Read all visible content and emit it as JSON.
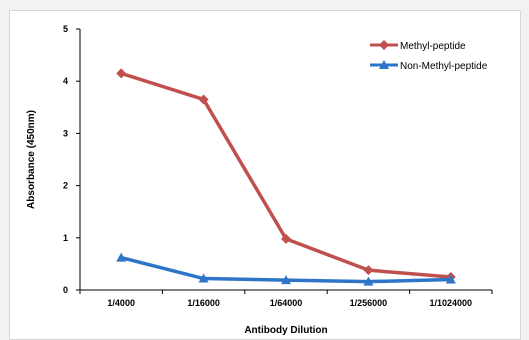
{
  "chart_data": {
    "type": "line",
    "categories": [
      "1/4000",
      "1/16000",
      "1/64000",
      "1/256000",
      "1/1024000"
    ],
    "series": [
      {
        "name": "Methyl-peptide",
        "values": [
          4.15,
          3.65,
          0.98,
          0.38,
          0.25
        ],
        "color": "#c0504d",
        "marker": "diamond"
      },
      {
        "name": "Non-Methyl-peptide",
        "values": [
          0.62,
          0.22,
          0.19,
          0.16,
          0.2
        ],
        "color": "#2e75c9",
        "marker": "triangle"
      }
    ],
    "title": "",
    "xlabel": "Antibody Dilution",
    "ylabel": "Absorbance (450nm)",
    "ylim": [
      0,
      5
    ],
    "yticks": [
      "0",
      "1",
      "2",
      "3",
      "4",
      "5"
    ],
    "grid": false,
    "legend_position": "top-right"
  }
}
